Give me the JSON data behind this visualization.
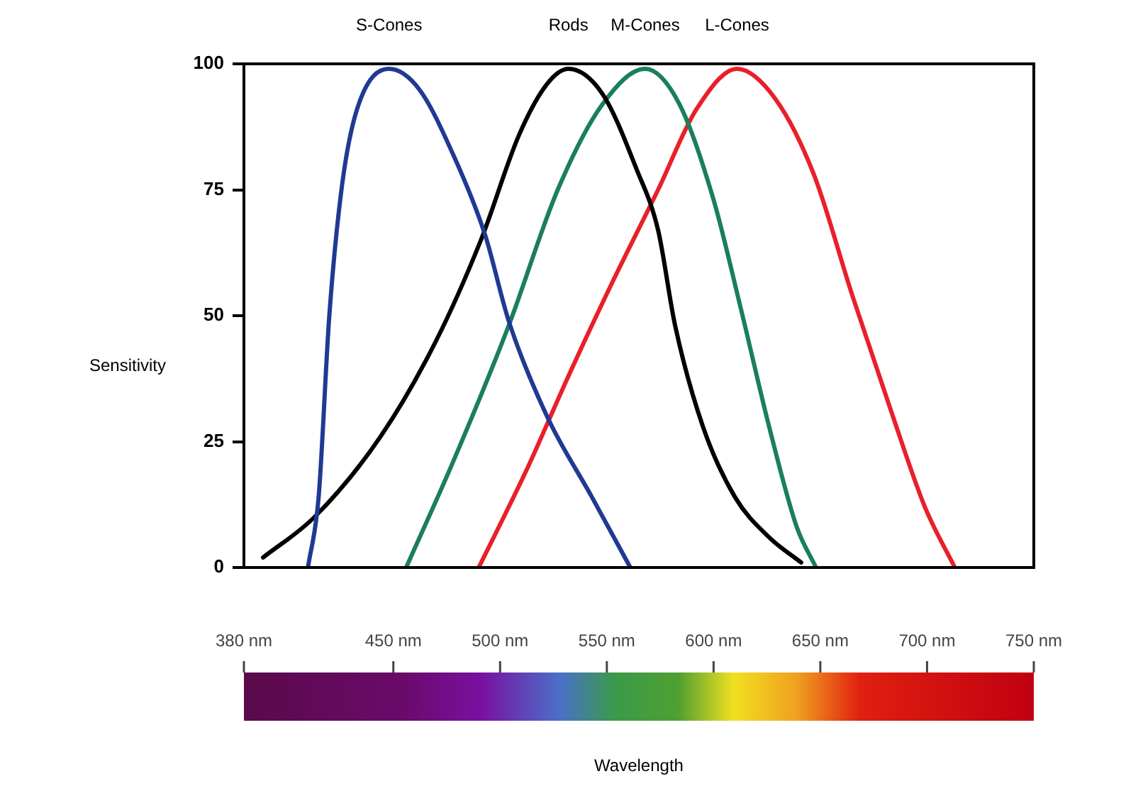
{
  "chart_data": {
    "type": "line",
    "annotations": [
      "Wavelength"
    ],
    "ylabel": "Sensitivity",
    "xlim": [
      380,
      750
    ],
    "xticks": [
      {
        "value": 380,
        "label": "380 nm"
      },
      {
        "value": 450,
        "label": "450 nm"
      },
      {
        "value": 500,
        "label": "500 nm"
      },
      {
        "value": 550,
        "label": "550 nm"
      },
      {
        "value": 600,
        "label": "600 nm"
      },
      {
        "value": 650,
        "label": "650 nm"
      },
      {
        "value": 700,
        "label": "700 nm"
      },
      {
        "value": 750,
        "label": "750 nm"
      }
    ],
    "ylim": [
      0,
      100
    ],
    "yticks": [
      0,
      25,
      50,
      75,
      100
    ],
    "grid": false,
    "legend": false,
    "marker": "none",
    "line_style": "solid",
    "series": [
      {
        "name": "S-Cones",
        "color": "#1f3a93",
        "x": [
          410,
          415,
          420,
          426,
          433,
          448,
          462,
          478,
          493,
          504,
          522,
          543,
          561
        ],
        "values": [
          0,
          14,
          50,
          76,
          91,
          99,
          95,
          82,
          66,
          49,
          30,
          14,
          0
        ]
      },
      {
        "name": "Rods",
        "color": "#000000",
        "x": [
          389,
          413,
          444,
          470,
          491,
          509,
          522,
          532,
          548,
          564,
          574,
          582,
          595,
          610,
          626,
          641
        ],
        "values": [
          2,
          10,
          26,
          45,
          65,
          86,
          96,
          99,
          94,
          79,
          67,
          48,
          28,
          14,
          6,
          1
        ]
      },
      {
        "name": "M-Cones",
        "color": "#1a7f5a",
        "x": [
          456,
          478,
          504,
          527,
          548,
          568,
          584,
          600,
          613,
          626,
          639,
          648
        ],
        "values": [
          0,
          21,
          48,
          75,
          92,
          99,
          92,
          73,
          51,
          28,
          8,
          0
        ]
      },
      {
        "name": "L-Cones",
        "color": "#e8202a",
        "x": [
          490,
          512,
          532,
          553,
          574,
          592,
          611,
          629,
          647,
          665,
          684,
          699,
          713
        ],
        "values": [
          0,
          19,
          38,
          57,
          75,
          91,
          99,
          93,
          78,
          54,
          30,
          12,
          0
        ]
      }
    ]
  }
}
